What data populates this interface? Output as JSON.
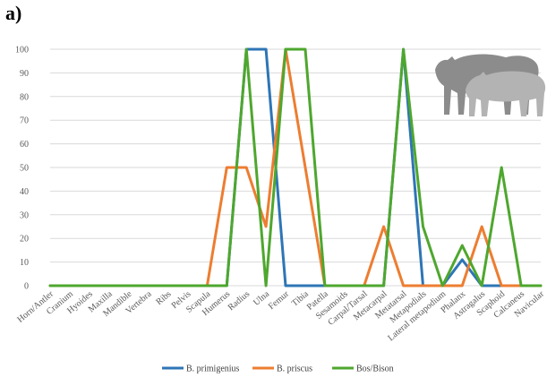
{
  "panel_label": "a)",
  "colors": {
    "B. primigenius": "#2E75B6",
    "B. priscus": "#ED7D31",
    "Bos/Bison": "#4EA72E",
    "grid": "#D9D9D9",
    "axis_text": "#595959"
  },
  "icon": "bovid-silhouettes-icon",
  "chart_data": {
    "type": "line",
    "title": "",
    "xlabel": "",
    "ylabel": "",
    "ylim": [
      0,
      100
    ],
    "yticks": [
      0,
      10,
      20,
      30,
      40,
      50,
      60,
      70,
      80,
      90,
      100
    ],
    "grid": true,
    "legend": "bottom",
    "categories": [
      "Horn/Antler",
      "Cranium",
      "Hyoides",
      "Maxilla",
      "Mandible",
      "Vertebra",
      "Ribs",
      "Pelvis",
      "Scapula",
      "Humerus",
      "Radius",
      "Ulna",
      "Femur",
      "Tibia",
      "Patella",
      "Sesamoids",
      "Carpal/Tarsal",
      "Metacarpal",
      "Metatarsal",
      "Metapodials",
      "Lateral metapodium",
      "Phalanx",
      "Astragalus",
      "Scaphoid",
      "Calcaneus",
      "Navicular"
    ],
    "series": [
      {
        "name": "B. primigenius",
        "values": [
          0,
          0,
          0,
          0,
          0,
          0,
          0,
          0,
          0,
          0,
          100,
          100,
          0,
          0,
          0,
          0,
          0,
          0,
          100,
          0,
          0,
          11,
          0,
          0,
          0,
          0
        ]
      },
      {
        "name": "B. priscus",
        "values": [
          0,
          0,
          0,
          0,
          0,
          0,
          0,
          0,
          0,
          50,
          50,
          25,
          100,
          50,
          0,
          0,
          0,
          25,
          0,
          0,
          0,
          0,
          25,
          0,
          0,
          0
        ]
      },
      {
        "name": "Bos/Bison",
        "values": [
          0,
          0,
          0,
          0,
          0,
          0,
          0,
          0,
          0,
          0,
          100,
          0,
          100,
          100,
          0,
          0,
          0,
          0,
          100,
          25,
          0,
          17,
          0,
          50,
          0,
          0
        ]
      }
    ]
  }
}
